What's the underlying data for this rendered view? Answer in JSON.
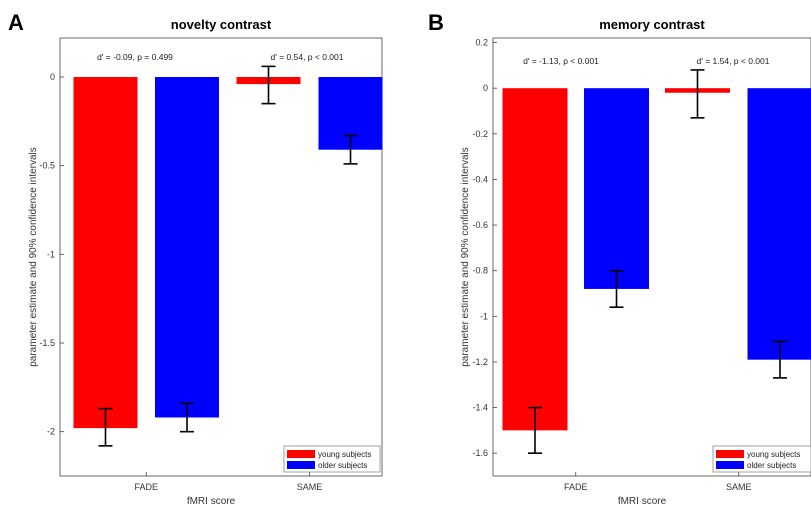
{
  "chart_data": [
    {
      "type": "bar",
      "panel": "A",
      "title": "novelty contrast",
      "xlabel": "fMRI score",
      "ylabel": "parameter estimate and 90% confidence intervals",
      "ylim": [
        -2.25,
        0.22
      ],
      "yticks": [
        0,
        -0.5,
        -1,
        -1.5,
        -2
      ],
      "ytick_labels": [
        "0",
        "-0.5",
        "-1",
        "-1.5",
        "-2"
      ],
      "categories": [
        "FADE",
        "SAME"
      ],
      "series": [
        {
          "name": "young subjects",
          "color": "#ff0000",
          "values": [
            -1.98,
            -0.04
          ],
          "err_low": [
            -2.08,
            -0.15
          ],
          "err_high": [
            -1.87,
            0.06
          ]
        },
        {
          "name": "older subjects",
          "color": "#0000ff",
          "values": [
            -1.92,
            -0.41
          ],
          "err_low": [
            -2.0,
            -0.49
          ],
          "err_high": [
            -1.84,
            -0.33
          ]
        }
      ],
      "annotations": [
        "d' = -0.09, p = 0.499",
        "d' = 0.54, p < 0.001"
      ],
      "legend": "bottom-right",
      "grid": false
    },
    {
      "type": "bar",
      "panel": "B",
      "title": "memory contrast",
      "xlabel": "fMRI score",
      "ylabel": "parameter estimate and 90% confidence intervals",
      "ylim": [
        -1.7,
        0.22
      ],
      "yticks": [
        0.2,
        0,
        -0.2,
        -0.4,
        -0.6,
        -0.8,
        -1,
        -1.2,
        -1.4,
        -1.6
      ],
      "ytick_labels": [
        "0.2",
        "0",
        "-0.2",
        "-0.4",
        "-0.6",
        "-0.8",
        "-1",
        "-1.2",
        "-1.4",
        "-1.6"
      ],
      "categories": [
        "FADE",
        "SAME"
      ],
      "series": [
        {
          "name": "young subjects",
          "color": "#ff0000",
          "values": [
            -1.5,
            -0.02
          ],
          "err_low": [
            -1.6,
            -0.13
          ],
          "err_high": [
            -1.4,
            0.08
          ]
        },
        {
          "name": "older subjects",
          "color": "#0000ff",
          "values": [
            -0.88,
            -1.19
          ],
          "err_low": [
            -0.96,
            -1.27
          ],
          "err_high": [
            -0.8,
            -1.11
          ]
        }
      ],
      "annotations": [
        "d' = -1.13, p < 0.001",
        "d' = 1.54, p < 0.001"
      ],
      "legend": "bottom-right",
      "grid": false
    }
  ]
}
